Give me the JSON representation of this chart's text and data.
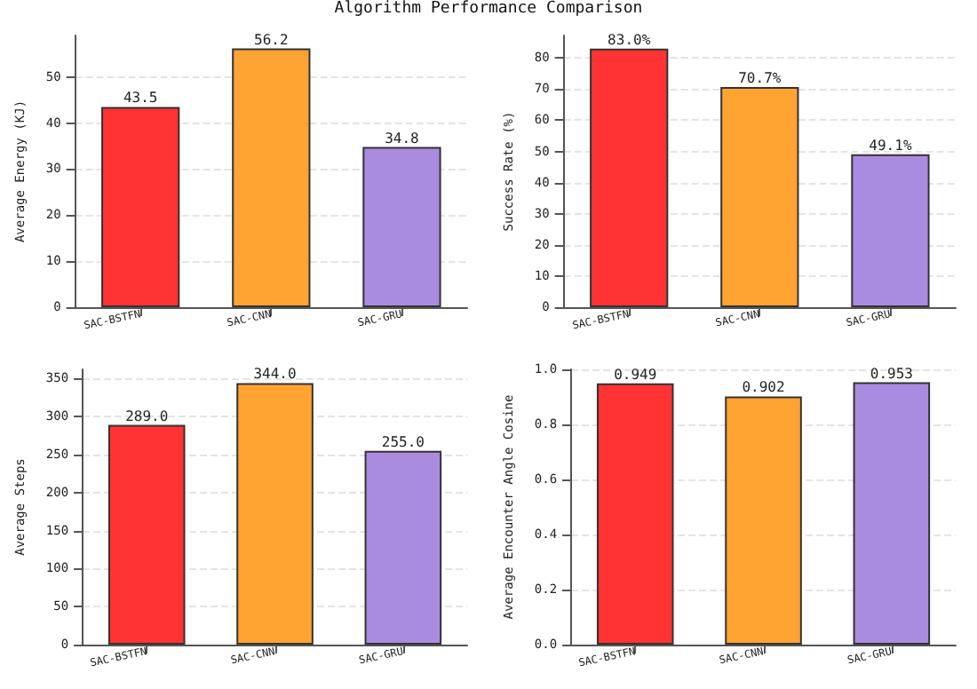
{
  "chart_data": [
    {
      "type": "bar",
      "title": "Algorithm Performance Comparison",
      "categories": [
        "SAC-BSTFN",
        "SAC-CNN",
        "SAC-GRU"
      ],
      "values": [
        43.5,
        56.2,
        34.8
      ],
      "colors": [
        "#ff3333",
        "#ffa333",
        "#a98be0"
      ],
      "value_labels": [
        "43.5",
        "56.2",
        "34.8"
      ],
      "ylabel": "Average Energy (KJ)",
      "ylim": [
        0,
        59
      ],
      "yticks": [
        0,
        10,
        20,
        30,
        40,
        50
      ],
      "grid": "y"
    },
    {
      "type": "bar",
      "categories": [
        "SAC-BSTFN",
        "SAC-CNN",
        "SAC-GRU"
      ],
      "values": [
        83.0,
        70.7,
        49.1
      ],
      "colors": [
        "#ff3333",
        "#ffa333",
        "#a98be0"
      ],
      "value_labels": [
        "83.0%",
        "70.7%",
        "49.1%"
      ],
      "ylabel": "Success Rate (%)",
      "ylim": [
        0,
        87.2
      ],
      "yticks": [
        0,
        10,
        20,
        30,
        40,
        50,
        60,
        70,
        80
      ],
      "grid": "y"
    },
    {
      "type": "bar",
      "categories": [
        "SAC-BSTFN",
        "SAC-CNN",
        "SAC-GRU"
      ],
      "values": [
        289.0,
        344.0,
        255.0
      ],
      "colors": [
        "#ff3333",
        "#ffa333",
        "#a98be0"
      ],
      "value_labels": [
        "289.0",
        "344.0",
        "255.0"
      ],
      "ylabel": "Average Steps",
      "ylim": [
        0,
        362
      ],
      "yticks": [
        0,
        50,
        100,
        150,
        200,
        250,
        300,
        350
      ],
      "grid": "y"
    },
    {
      "type": "bar",
      "categories": [
        "SAC-BSTFN",
        "SAC-CNN",
        "SAC-GRU"
      ],
      "values": [
        0.949,
        0.902,
        0.953
      ],
      "colors": [
        "#ff3333",
        "#ffa333",
        "#a98be0"
      ],
      "value_labels": [
        "0.949",
        "0.902",
        "0.953"
      ],
      "ylabel": "Average Encounter Angle Cosine",
      "ylim": [
        0,
        1.0
      ],
      "yticks": [
        {
          "value": 0,
          "label": "0.0"
        },
        {
          "value": 0.2,
          "label": "0.2"
        },
        {
          "value": 0.4,
          "label": "0.4"
        },
        {
          "value": 0.6,
          "label": "0.6"
        },
        {
          "value": 0.8,
          "label": "0.8"
        },
        {
          "value": 1.0,
          "label": "1.0"
        }
      ],
      "grid": "y"
    }
  ]
}
